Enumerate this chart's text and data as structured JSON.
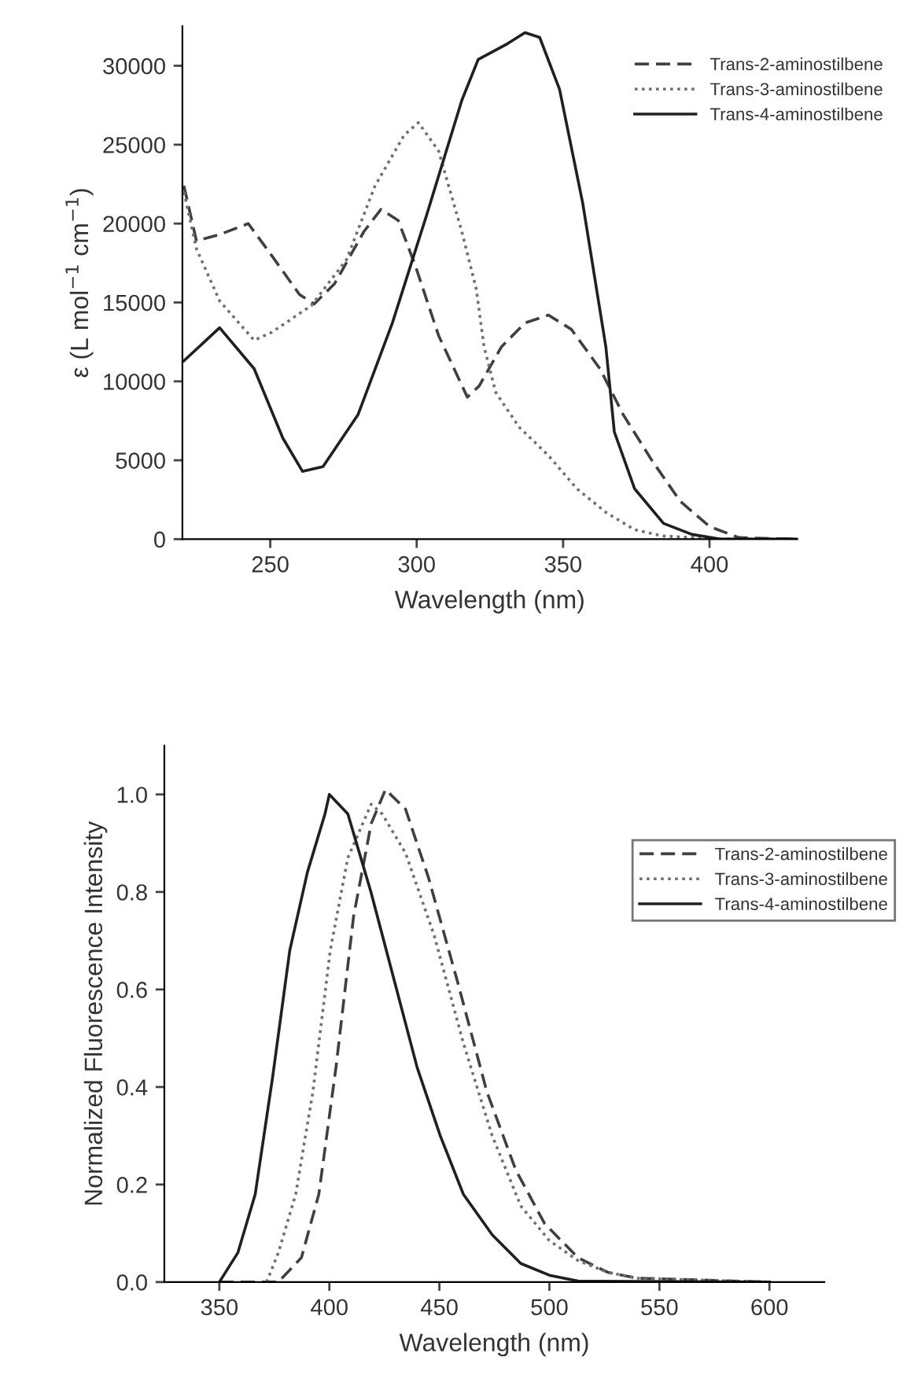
{
  "chart_data": [
    {
      "type": "line",
      "xlabel": "Wavelength (nm)",
      "ylabel": "ε (L mol$^{−1}$ cm$^{−1}$)",
      "xlim": [
        220,
        430
      ],
      "ylim": [
        0,
        32500
      ],
      "xticks": [
        250,
        300,
        350,
        400
      ],
      "yticks": [
        0,
        5000,
        10000,
        15000,
        20000,
        25000,
        30000
      ],
      "legend": "top right",
      "grid": false,
      "series": [
        {
          "name": "Trans-2-aminostilbene",
          "color": "#404040",
          "line_style": "dashed",
          "x": [
            220.5,
            224.8,
            232.7,
            242.5,
            250.4,
            260,
            265,
            272,
            282,
            287.8,
            293.7,
            299.6,
            307.5,
            317.3,
            321.3,
            329,
            337,
            345,
            352.8,
            362.6,
            370.5,
            380.3,
            390,
            400,
            410,
            430
          ],
          "values": [
            22400,
            18900,
            19300,
            20000,
            18000,
            15500,
            14900,
            16200,
            19500,
            20900,
            20200,
            17300,
            12900,
            9000,
            9700,
            12200,
            13700,
            14200,
            13300,
            10800,
            7900,
            5000,
            2400,
            800,
            100,
            0
          ]
        },
        {
          "name": "Trans-3-aminostilbene",
          "color": "#707070",
          "line_style": "dotted",
          "x": [
            220.5,
            224.8,
            232.7,
            244.5,
            250.4,
            264,
            276,
            285.8,
            295.7,
            300.6,
            307.5,
            315.4,
            320.3,
            323,
            327,
            335,
            345,
            354.7,
            364.6,
            374.4,
            384,
            404,
            430
          ],
          "values": [
            22000,
            18400,
            15100,
            12600,
            13100,
            14800,
            17700,
            22400,
            25600,
            26400,
            24600,
            19500,
            15900,
            12200,
            9300,
            7100,
            5300,
            3200,
            1700,
            600,
            200,
            0,
            0
          ]
        },
        {
          "name": "Trans-4-aminostilbene",
          "color": "#202020",
          "line_style": "solid",
          "x": [
            220.5,
            232.7,
            244.5,
            254.3,
            261,
            268,
            280,
            291.7,
            303.5,
            315.4,
            321,
            331,
            337,
            342,
            348.8,
            356.7,
            364.6,
            367.5,
            374.4,
            384.3,
            394,
            404,
            430
          ],
          "values": [
            11300,
            13400,
            10800,
            6400,
            4300,
            4600,
            7900,
            13700,
            20600,
            27800,
            30400,
            31400,
            32100,
            31800,
            28500,
            21300,
            12200,
            6800,
            3200,
            1000,
            300,
            0,
            0
          ]
        }
      ]
    },
    {
      "type": "line",
      "xlabel": "Wavelength (nm)",
      "ylabel": "Normalized Fluorescence Intensity",
      "xlim": [
        325,
        625
      ],
      "ylim": [
        0,
        1.1
      ],
      "xticks": [
        350,
        400,
        450,
        500,
        550,
        600
      ],
      "yticks": [
        {
          "value": 0,
          "label": "0.0"
        },
        {
          "value": 0.2,
          "label": "0.2"
        },
        {
          "value": 0.4,
          "label": "0.4"
        },
        {
          "value": 0.6,
          "label": "0.6"
        },
        {
          "value": 0.8,
          "label": "0.8"
        },
        {
          "value": 1.0,
          "label": "1.0"
        }
      ],
      "legend": "top right",
      "grid": false,
      "series": [
        {
          "name": "Trans-2-aminostilbene",
          "color": "#404040",
          "line_style": "dashed",
          "x": [
            350,
            376.8,
            387.3,
            395.2,
            403,
            411,
            419,
            425.5,
            434.6,
            445,
            458,
            471.6,
            484.7,
            497.8,
            513,
            526.5,
            540,
            600
          ],
          "values": [
            0,
            0,
            0.05,
            0.18,
            0.44,
            0.75,
            0.94,
            1.01,
            0.97,
            0.83,
            0.62,
            0.39,
            0.23,
            0.12,
            0.05,
            0.02,
            0.008,
            0
          ]
        },
        {
          "name": "Trans-3-aminostilbene",
          "color": "#707070",
          "line_style": "dotted",
          "x": [
            371.5,
            376.8,
            384.7,
            392.5,
            400.4,
            408.4,
            419,
            424,
            434.6,
            447.7,
            460.9,
            474,
            487,
            500,
            513,
            526.5,
            540,
            600
          ],
          "values": [
            0,
            0.06,
            0.18,
            0.39,
            0.68,
            0.87,
            0.98,
            0.96,
            0.88,
            0.71,
            0.49,
            0.3,
            0.156,
            0.085,
            0.044,
            0.02,
            0.008,
            0
          ]
        },
        {
          "name": "Trans-4-aminostilbene",
          "color": "#202020",
          "line_style": "solid",
          "x": [
            350,
            358.4,
            366.3,
            374.2,
            382,
            390,
            398,
            400,
            408.4,
            418.9,
            429.4,
            439.9,
            450.4,
            460.9,
            474,
            487,
            500,
            513,
            600
          ],
          "values": [
            0,
            0.06,
            0.18,
            0.42,
            0.68,
            0.84,
            0.96,
            1.0,
            0.96,
            0.8,
            0.62,
            0.44,
            0.3,
            0.18,
            0.097,
            0.038,
            0.014,
            0.002,
            0
          ]
        }
      ]
    }
  ]
}
